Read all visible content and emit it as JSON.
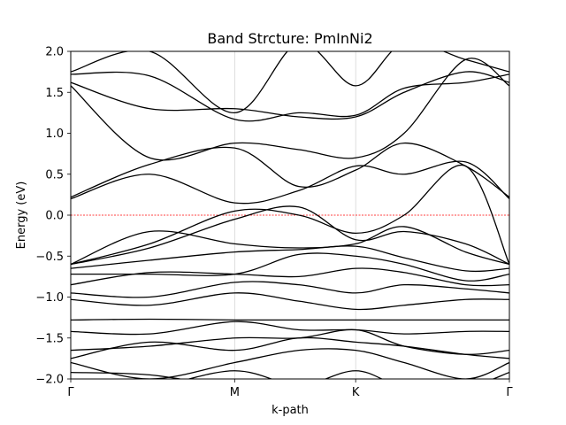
{
  "chart_data": {
    "type": "line",
    "title": "Band Strcture: PmInNi2",
    "xlabel": "k-path",
    "ylabel": "Energy (eV)",
    "ylim": [
      -2.0,
      2.0
    ],
    "y_ticks": [
      "−2.0",
      "−1.5",
      "−1.0",
      "−0.5",
      "0.0",
      "0.5",
      "1.0",
      "1.5",
      "2.0"
    ],
    "y_tick_values": [
      -2.0,
      -1.5,
      -1.0,
      -0.5,
      0.0,
      0.5,
      1.0,
      1.5,
      2.0
    ],
    "x_ticks": [
      "Γ",
      "M",
      "K",
      "Γ"
    ],
    "x_tick_values": [
      0,
      0.3736,
      0.6495,
      1.0
    ],
    "fermi_level": 0.0,
    "fermi_color": "#ff0000",
    "band_color": "#000000",
    "grid": "vertical lines at high-symmetry points",
    "x": [
      0.0,
      0.18,
      0.3736,
      0.52,
      0.6495,
      0.76,
      0.9,
      1.0
    ],
    "series": [
      {
        "values": [
          -2.1,
          -2.1,
          -1.9,
          -2.1,
          -2.1,
          -2.1,
          -2.1,
          -2.1
        ]
      },
      {
        "values": [
          -1.92,
          -1.95,
          -2.1,
          -2.1,
          -1.9,
          -2.1,
          -2.1,
          -1.92
        ]
      },
      {
        "values": [
          -1.8,
          -2.0,
          -1.8,
          -1.65,
          -1.65,
          -1.8,
          -2.0,
          -1.8
        ]
      },
      {
        "values": [
          -1.75,
          -1.55,
          -1.65,
          -1.5,
          -1.55,
          -1.6,
          -1.7,
          -1.75
        ]
      },
      {
        "values": [
          -1.65,
          -1.6,
          -1.5,
          -1.5,
          -1.4,
          -1.6,
          -1.7,
          -1.65
        ]
      },
      {
        "values": [
          -1.42,
          -1.45,
          -1.3,
          -1.4,
          -1.4,
          -1.45,
          -1.42,
          -1.42
        ]
      },
      {
        "values": [
          -1.28,
          -1.27,
          -1.28,
          -1.28,
          -1.28,
          -1.28,
          -1.28,
          -1.28
        ]
      },
      {
        "values": [
          -1.03,
          -1.1,
          -0.95,
          -1.05,
          -1.15,
          -1.1,
          -1.03,
          -1.03
        ]
      },
      {
        "values": [
          -0.95,
          -1.0,
          -0.82,
          -0.85,
          -0.95,
          -0.85,
          -0.9,
          -0.95
        ]
      },
      {
        "values": [
          -0.85,
          -0.7,
          -0.72,
          -0.75,
          -0.65,
          -0.7,
          -0.85,
          -0.85
        ]
      },
      {
        "values": [
          -0.72,
          -0.72,
          -0.72,
          -0.48,
          -0.5,
          -0.6,
          -0.8,
          -0.72
        ]
      },
      {
        "values": [
          -0.65,
          -0.55,
          -0.45,
          -0.42,
          -0.38,
          -0.52,
          -0.68,
          -0.65
        ]
      },
      {
        "values": [
          -0.6,
          -0.2,
          -0.35,
          -0.4,
          -0.35,
          -0.14,
          -0.45,
          -0.6
        ]
      },
      {
        "values": [
          -0.6,
          -0.4,
          -0.05,
          0.1,
          -0.3,
          -0.2,
          -0.35,
          -0.6
        ]
      },
      {
        "values": [
          -0.6,
          -0.35,
          0.05,
          0.0,
          -0.22,
          0.0,
          0.6,
          -0.6
        ]
      },
      {
        "values": [
          0.2,
          0.5,
          0.15,
          0.3,
          0.6,
          0.5,
          0.65,
          0.2
        ]
      },
      {
        "values": [
          0.22,
          0.62,
          0.82,
          0.35,
          0.55,
          0.88,
          0.6,
          0.22
        ]
      },
      {
        "values": [
          1.58,
          0.7,
          0.88,
          0.8,
          0.7,
          1.0,
          1.9,
          1.58
        ]
      },
      {
        "values": [
          1.62,
          1.3,
          1.3,
          1.2,
          1.2,
          1.5,
          1.75,
          1.62
        ]
      },
      {
        "values": [
          1.72,
          1.7,
          1.17,
          1.25,
          1.22,
          1.55,
          1.62,
          1.72
        ]
      },
      {
        "values": [
          1.75,
          2.0,
          1.25,
          2.1,
          1.58,
          2.1,
          1.9,
          1.75
        ]
      }
    ]
  }
}
